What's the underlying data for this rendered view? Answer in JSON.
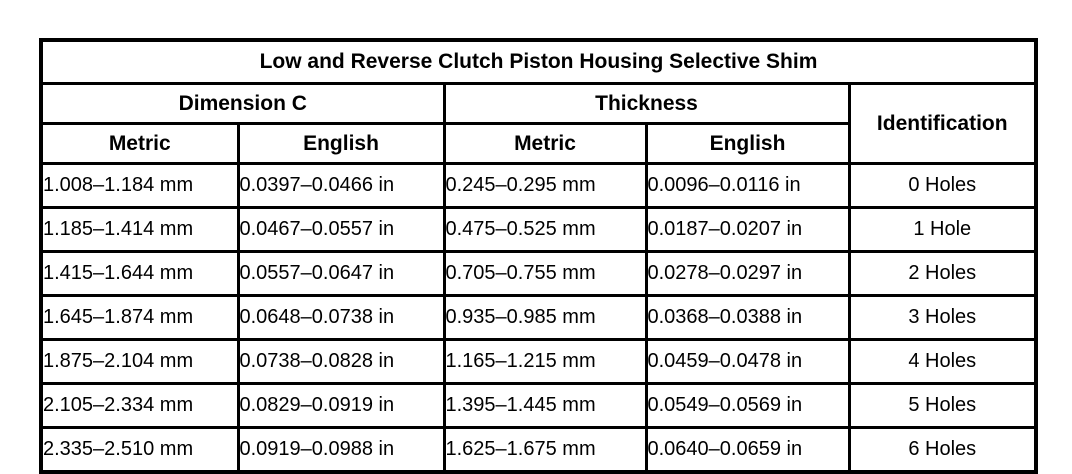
{
  "table": {
    "title": "Low and Reverse Clutch Piston Housing Selective Shim",
    "column_groups": [
      "Dimension C",
      "Thickness"
    ],
    "identification_label": "Identification",
    "subheaders": [
      "Metric",
      "English",
      "Metric",
      "English"
    ],
    "rows": [
      [
        "1.008–1.184 mm",
        "0.0397–0.0466 in",
        "0.245–0.295 mm",
        "0.0096–0.0116 in",
        "0 Holes"
      ],
      [
        "1.185–1.414 mm",
        "0.0467–0.0557 in",
        "0.475–0.525 mm",
        "0.0187–0.0207 in",
        "1 Hole"
      ],
      [
        "1.415–1.644 mm",
        "0.0557–0.0647 in",
        "0.705–0.755 mm",
        "0.0278–0.0297 in",
        "2 Holes"
      ],
      [
        "1.645–1.874 mm",
        "0.0648–0.0738 in",
        "0.935–0.985 mm",
        "0.0368–0.0388 in",
        "3 Holes"
      ],
      [
        "1.875–2.104 mm",
        "0.0738–0.0828 in",
        "1.165–1.215 mm",
        "0.0459–0.0478 in",
        "4 Holes"
      ],
      [
        "2.105–2.334 mm",
        "0.0829–0.0919 in",
        "1.395–1.445 mm",
        "0.0549–0.0569 in",
        "5 Holes"
      ],
      [
        "2.335–2.510 mm",
        "0.0919–0.0988 in",
        "1.625–1.675 mm",
        "0.0640–0.0659 in",
        "6 Holes"
      ]
    ],
    "border_color": "#000000",
    "background_color": "#ffffff"
  }
}
